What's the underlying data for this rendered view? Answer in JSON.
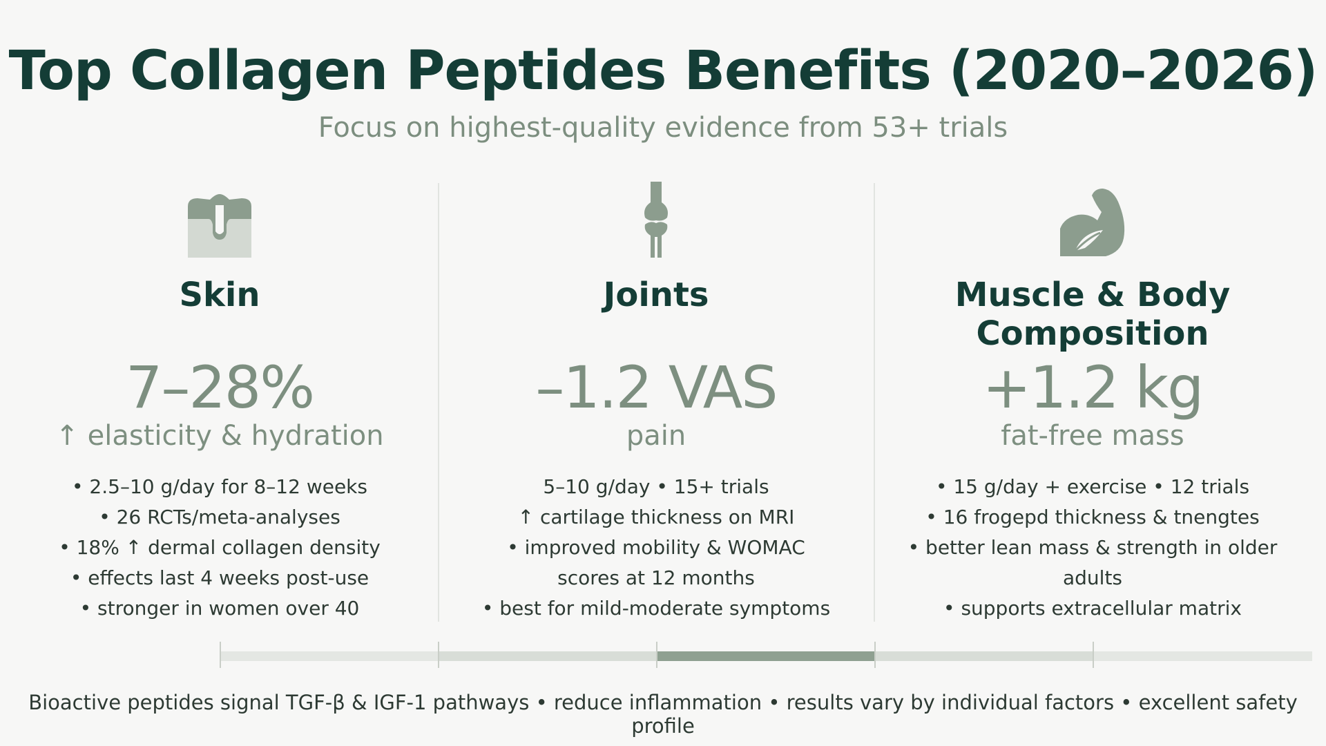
{
  "title": "Top Collagen Peptides Benefits (2020–2026)",
  "subtitle": "Focus on highest-quality evidence from 53+ trials",
  "columns": [
    {
      "icon": "skin-layer-icon",
      "heading_line1": "Skin",
      "heading_line2": "",
      "stat": "7–28%",
      "stat_label": "↑ elasticity & hydration",
      "bullets": [
        "• 2.5–10 g/day for 8–12 weeks",
        "• 26 RCTs/meta-analyses",
        "• 18% ↑ dermal collagen density",
        "• effects last 4 weeks post-use",
        "• stronger in women over 40"
      ]
    },
    {
      "icon": "knee-joint-icon",
      "heading_line1": "Joints",
      "heading_line2": "",
      "stat": "–1.2 VAS",
      "stat_label": "pain",
      "bullets": [
        "5–10 g/day • 15+ trials",
        "↑ cartilage thickness on MRI",
        "• improved mobility & WOMAC",
        "scores at 12 months",
        "• best for mild-moderate symptoms"
      ]
    },
    {
      "icon": "flexed-arm-icon",
      "heading_line1": "Muscle & Body",
      "heading_line2": "Composition",
      "stat": "+1.2 kg",
      "stat_label": "fat-free mass",
      "bullets": [
        "• 15 g/day + exercise • 12 trials",
        "• 16 frogepd thickness & tnengtes",
        "• better lean mass & strength in older adults",
        "• supports extracellular matrix"
      ]
    }
  ],
  "footer": "Bioactive peptides signal TGF-β & IGF-1 pathways • reduce inflammation • results vary by individual factors • excellent safety profile",
  "colors": {
    "title": "#143d36",
    "accent": "#7d8f80",
    "timeline_light": "#e4e7e3",
    "timeline_mid": "#d4d9d3",
    "timeline_dark": "#8fa091"
  }
}
